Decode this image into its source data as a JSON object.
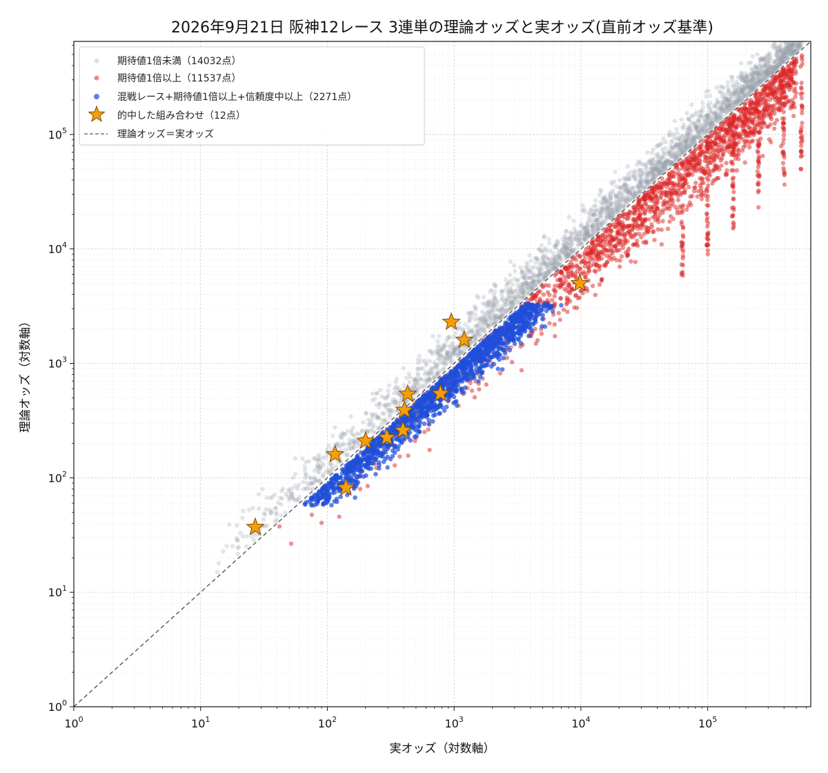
{
  "chart_data": {
    "type": "scatter",
    "title": "2026年9月21日 阪神12レース 3連単の理論オッズと実オッズ(直前オッズ基準)",
    "xlabel": "実オッズ（対数軸）",
    "ylabel": "理論オッズ（対数軸）",
    "x_scale": "log",
    "y_scale": "log",
    "xlim": [
      1,
      650000
    ],
    "ylim": [
      1,
      650000
    ],
    "xticks": [
      {
        "base": "10",
        "exp": "0",
        "value": 1
      },
      {
        "base": "10",
        "exp": "1",
        "value": 10
      },
      {
        "base": "10",
        "exp": "2",
        "value": 100
      },
      {
        "base": "10",
        "exp": "3",
        "value": 1000
      },
      {
        "base": "10",
        "exp": "4",
        "value": 10000
      },
      {
        "base": "10",
        "exp": "5",
        "value": 100000
      }
    ],
    "yticks": [
      {
        "base": "10",
        "exp": "0",
        "value": 1
      },
      {
        "base": "10",
        "exp": "1",
        "value": 10
      },
      {
        "base": "10",
        "exp": "2",
        "value": 100
      },
      {
        "base": "10",
        "exp": "3",
        "value": 1000
      },
      {
        "base": "10",
        "exp": "4",
        "value": 10000
      },
      {
        "base": "10",
        "exp": "5",
        "value": 100000
      }
    ],
    "grid": true,
    "legend_position": "top-left",
    "series": [
      {
        "name": "期待値1倍未満（14032点）",
        "color": "#9aa1ab",
        "kind": "scatter-cloud",
        "count": 14032
      },
      {
        "name": "期待値1倍以上（11537点）",
        "color": "#dc2626",
        "kind": "scatter-cloud",
        "count": 11537
      },
      {
        "name": "混戦レース+期待値1倍以上+信頼度中以上（2271点）",
        "color": "#1f4fd8",
        "kind": "scatter-cloud",
        "count": 2271
      },
      {
        "name": "的中した組み合わせ（12点）",
        "color": "#f59e0b",
        "edge_color": "#7a4a00",
        "kind": "star",
        "count": 12,
        "points": [
          {
            "x": 27,
            "y": 37
          },
          {
            "x": 115,
            "y": 160
          },
          {
            "x": 140,
            "y": 82
          },
          {
            "x": 200,
            "y": 210
          },
          {
            "x": 295,
            "y": 225
          },
          {
            "x": 395,
            "y": 260
          },
          {
            "x": 405,
            "y": 390
          },
          {
            "x": 430,
            "y": 540
          },
          {
            "x": 780,
            "y": 545
          },
          {
            "x": 950,
            "y": 2300
          },
          {
            "x": 1200,
            "y": 1600
          },
          {
            "x": 9800,
            "y": 5000
          }
        ]
      },
      {
        "name": "理論オッズ＝実オッズ",
        "color": "#555555",
        "kind": "reference-line",
        "style": "dashed"
      }
    ]
  }
}
